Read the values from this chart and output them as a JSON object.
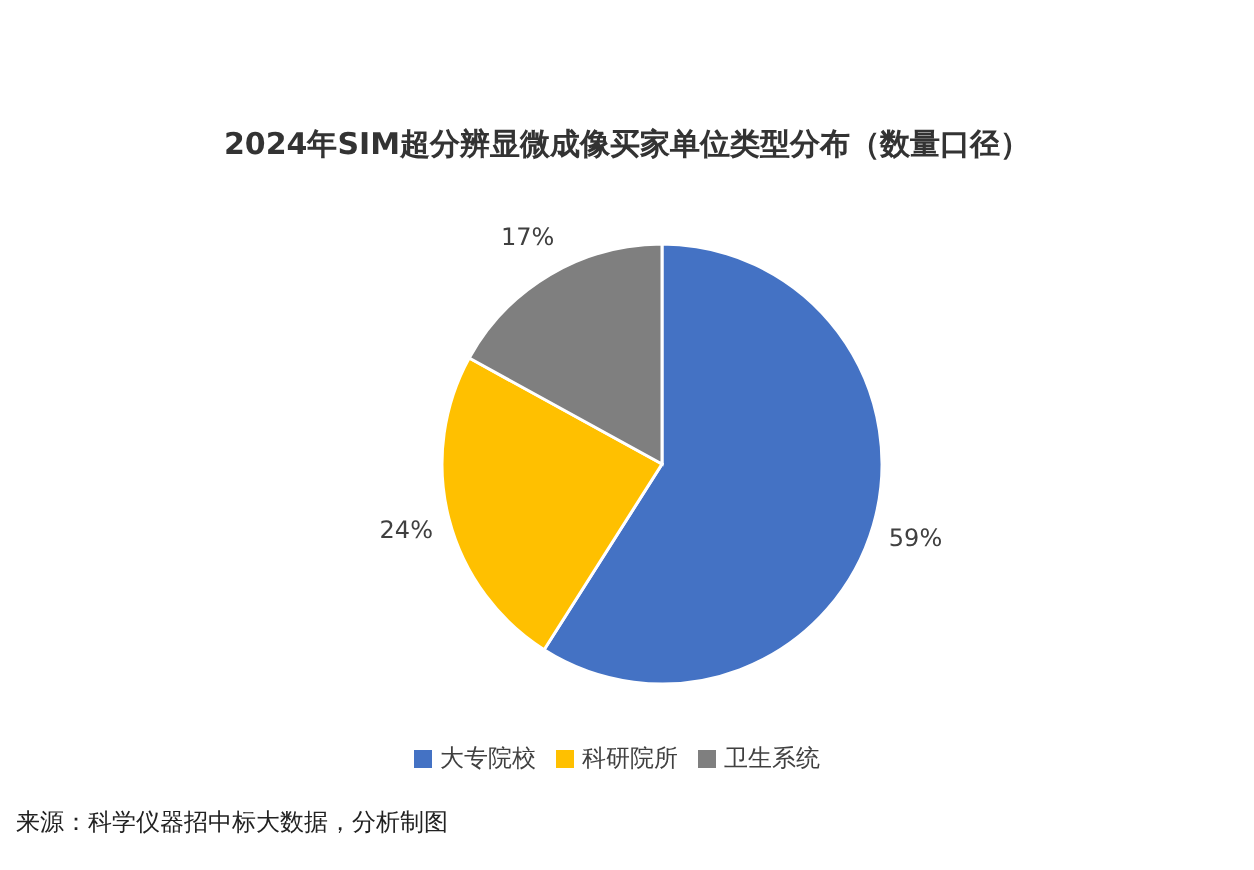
{
  "chart_data": {
    "type": "pie",
    "title": "2024年SIM超分辨显微成像买家单位类型分布（数量口径）",
    "categories": [
      "大专院校",
      "科研院所",
      "卫生系统"
    ],
    "values": [
      59,
      24,
      17
    ],
    "value_labels": [
      "59%",
      "24%",
      "17%"
    ],
    "colors": [
      "#4472c4",
      "#ffc000",
      "#7f7f7f"
    ],
    "legend": "bottom",
    "annotations": [
      "来源：科学仪器招中标大数据，分析制图"
    ]
  }
}
